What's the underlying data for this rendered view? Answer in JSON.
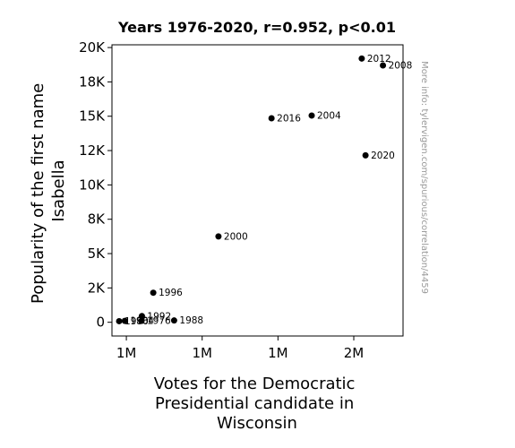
{
  "chart_data": {
    "type": "scatter",
    "title": "Years 1976-2020, r=0.952, p<0.01",
    "xlabel": [
      "Votes for the Democratic",
      "Presidential candidate in",
      "Wisconsin"
    ],
    "ylabel": [
      "Popularity of the first name",
      "Isabella"
    ],
    "credit": "More info: tylervigen.com/spurious/correlation/4459",
    "xlim": [
      962000,
      1730000
    ],
    "ylim": [
      -1000,
      20200
    ],
    "x_ticks": [
      {
        "value": 1000000,
        "label": "1M"
      },
      {
        "value": 1200000,
        "label": "1M"
      },
      {
        "value": 1400000,
        "label": "1M"
      },
      {
        "value": 1600000,
        "label": "2M"
      }
    ],
    "y_ticks": [
      {
        "value": 0,
        "label": "0"
      },
      {
        "value": 2500,
        "label": "2K"
      },
      {
        "value": 5000,
        "label": "5K"
      },
      {
        "value": 7500,
        "label": "8K"
      },
      {
        "value": 10000,
        "label": "10K"
      },
      {
        "value": 12500,
        "label": "12K"
      },
      {
        "value": 15000,
        "label": "15K"
      },
      {
        "value": 17500,
        "label": "18K"
      },
      {
        "value": 20000,
        "label": "20K"
      }
    ],
    "points": [
      {
        "year": "1976",
        "x": 1040000,
        "y": 100
      },
      {
        "year": "1980",
        "x": 981000,
        "y": 80
      },
      {
        "year": "1984",
        "x": 996000,
        "y": 100
      },
      {
        "year": "1988",
        "x": 1126000,
        "y": 130
      },
      {
        "year": "1992",
        "x": 1041000,
        "y": 450
      },
      {
        "year": "1996",
        "x": 1071000,
        "y": 2150
      },
      {
        "year": "2000",
        "x": 1243000,
        "y": 6250
      },
      {
        "year": "2004",
        "x": 1489000,
        "y": 15050
      },
      {
        "year": "2008",
        "x": 1677000,
        "y": 18700
      },
      {
        "year": "2012",
        "x": 1621000,
        "y": 19200
      },
      {
        "year": "2016",
        "x": 1383000,
        "y": 14850
      },
      {
        "year": "2020",
        "x": 1631000,
        "y": 12150
      }
    ],
    "marker_color": "#000000",
    "grid": false
  }
}
